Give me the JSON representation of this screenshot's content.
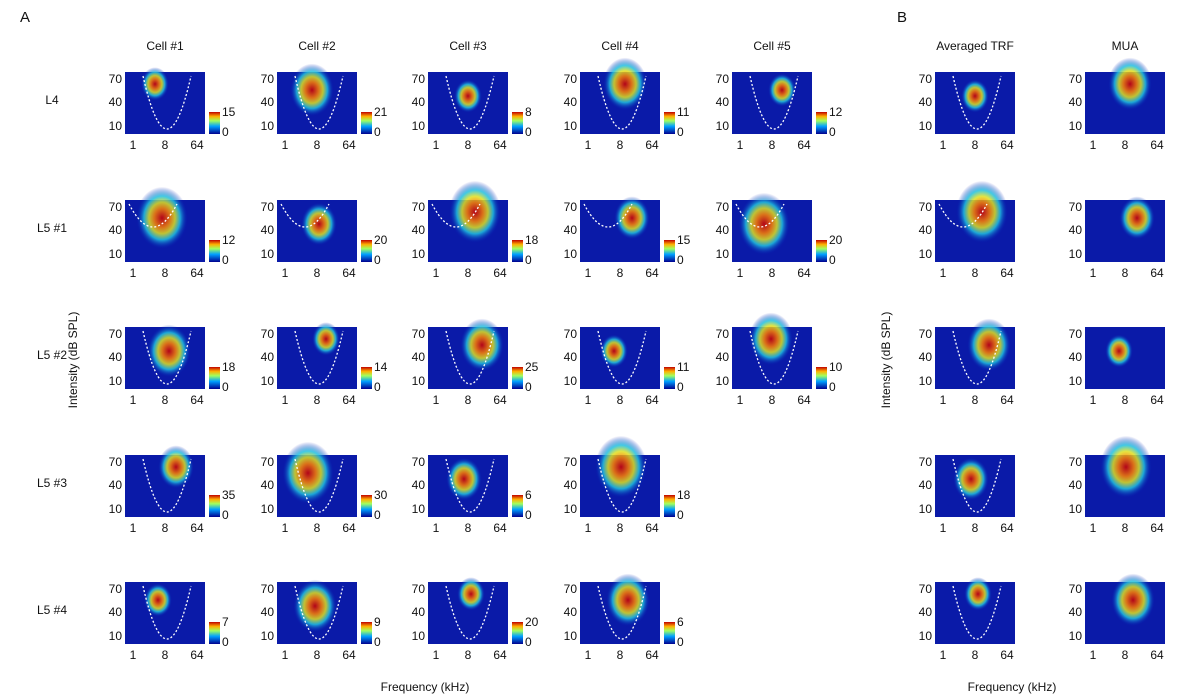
{
  "panel_labels": [
    "A",
    "B"
  ],
  "column_titles": [
    "Cell #1",
    "Cell #2",
    "Cell #3",
    "Cell #4",
    "Cell #5"
  ],
  "b_column_titles": [
    "Averaged TRF",
    "MUA"
  ],
  "row_labels": [
    "L4",
    "L5 #1",
    "L5 #2",
    "L5 #3",
    "L5 #4"
  ],
  "y_axis_label": "Intensity (dB SPL)",
  "x_axis_label": "Frequency (kHz)",
  "yticks": [
    70,
    40,
    10
  ],
  "xticks": [
    1,
    8,
    64
  ],
  "colorbar_min": 0,
  "colorbar_max": [
    [
      15,
      21,
      8,
      11,
      12
    ],
    [
      12,
      20,
      18,
      15,
      20
    ],
    [
      18,
      14,
      25,
      11,
      10
    ],
    [
      35,
      30,
      6,
      18
    ],
    [
      7,
      9,
      20,
      6
    ]
  ]
}
